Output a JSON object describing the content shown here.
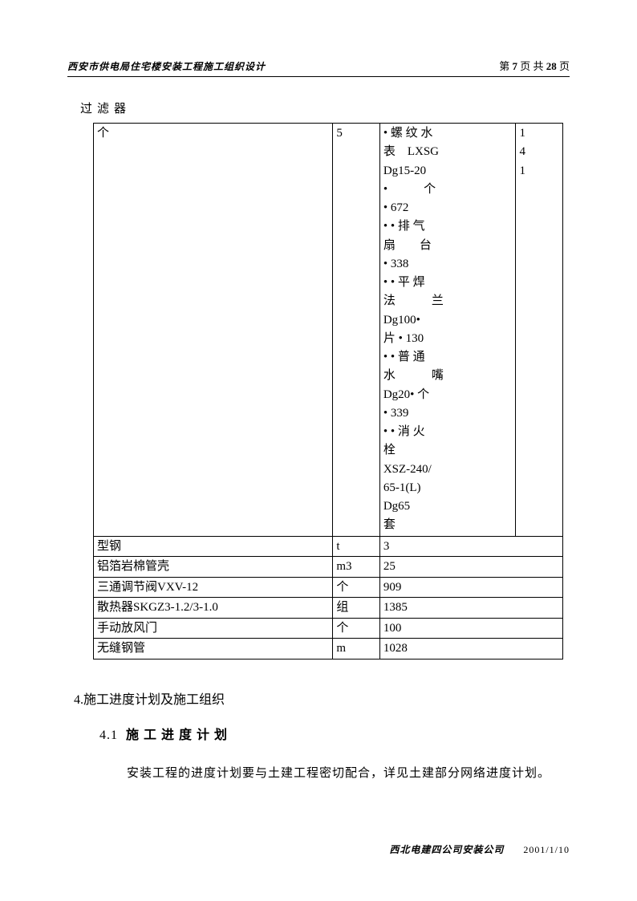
{
  "header": {
    "left": "西安市供电局住宅楼安装工程施工组织设计",
    "right_prefix": "第 ",
    "page_current": "7",
    "right_mid": " 页 共 ",
    "page_total": "28",
    "right_suffix": " 页"
  },
  "filter_label": "过滤器",
  "table": {
    "row0": {
      "c1": "个",
      "c2": "5",
      "c3_l1": "• 螺 纹 水",
      "c3_l2": "表　LXSG",
      "c3_l3": "Dg15-20",
      "c3_l4": "•　　　个",
      "c3_l5": "• 672",
      "c3_l6": "• • 排 气",
      "c3_l7": "扇　　台",
      "c3_l8": "• 338",
      "c3_l9": "• • 平 焊",
      "c3_l10": "法　　　兰",
      "c3_l11": "Dg100•",
      "c3_l12": "片 • 130",
      "c3_l13": "• • 普 通",
      "c3_l14": "水　　　嘴",
      "c3_l15": "Dg20• 个",
      "c3_l16": "• 339",
      "c3_l17": "• • 消 火",
      "c3_l18": "栓",
      "c3_l19": "XSZ-240/",
      "c3_l20": "65-1(L)",
      "c3_l21": "Dg65",
      "c3_l22": "套",
      "c4_l1": "1",
      "c4_l2": "4",
      "c4_l3": "1"
    },
    "row1": {
      "c1": "型钢",
      "c2": "t",
      "c3": "3"
    },
    "row2": {
      "c1": "铝箔岩棉管壳",
      "c2": "m3",
      "c3": "25"
    },
    "row3": {
      "c1": "三通调节阀VXV-12",
      "c2": "个",
      "c3": "909"
    },
    "row4": {
      "c1": "散热器SKGZ3-1.2/3-1.0",
      "c2": "组",
      "c3": "1385"
    },
    "row5": {
      "c1": "手动放风门",
      "c2": "个",
      "c3": "100"
    },
    "row6": {
      "c1": "无缝钢管",
      "c2": "m",
      "c3": "1028"
    }
  },
  "section": {
    "heading_num": "4.",
    "heading_text": "施工进度计划及施工组织",
    "sub_num": "4.1",
    "sub_text": "施工进度计划",
    "body": "安装工程的进度计划要与土建工程密切配合，详见土建部分网络进度计划。"
  },
  "footer": {
    "left": "西北电建四公司安装公司",
    "right": "2001/1/10"
  }
}
